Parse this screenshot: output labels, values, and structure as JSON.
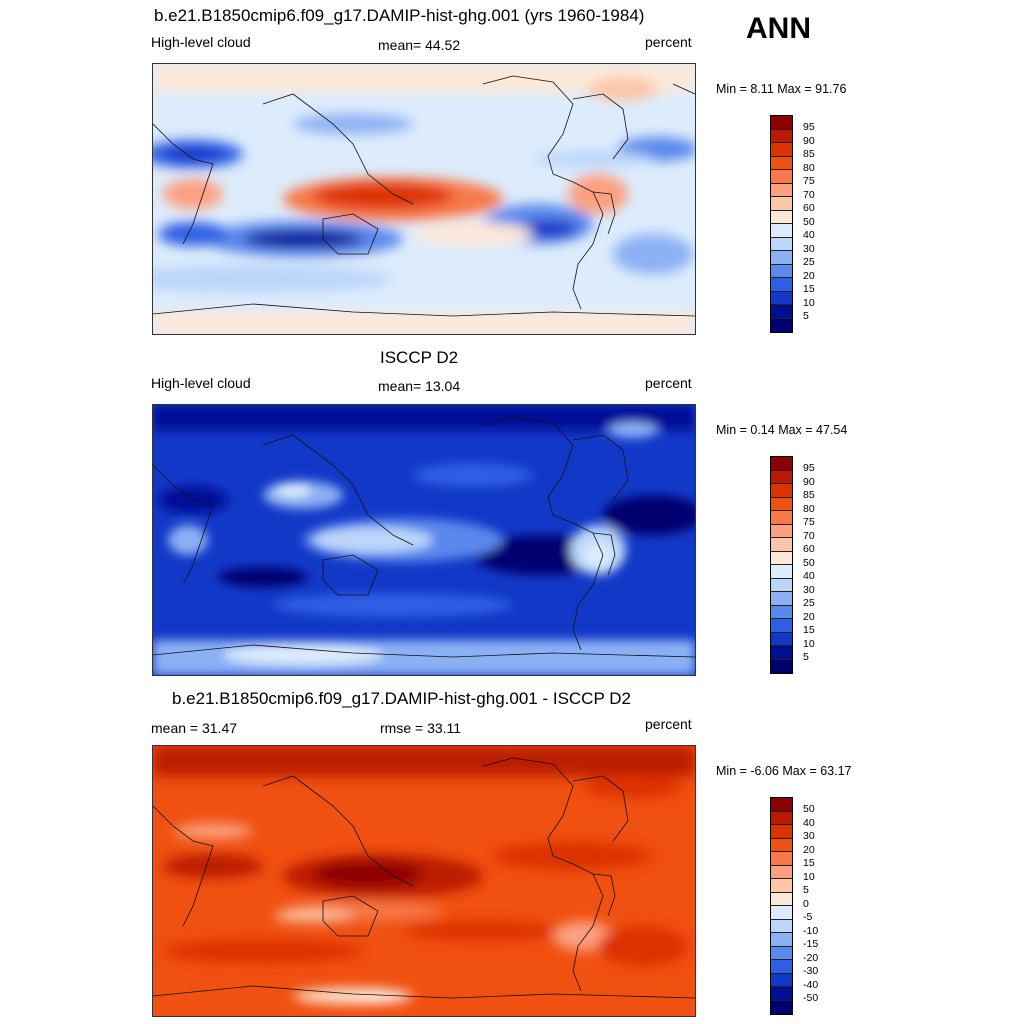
{
  "season": "ANN",
  "panels": [
    {
      "title": "b.e21.B1850cmip6.f09_g17.DAMIP-hist-ghg.001 (yrs 1960-1984)",
      "left_label": "High-level cloud",
      "center_label": "mean=  44.52",
      "right_label": "percent",
      "minmax": "Min =   8.11 Max =  91.76",
      "ticks": [
        "95",
        "90",
        "85",
        "80",
        "75",
        "70",
        "60",
        "50",
        "40",
        "30",
        "25",
        "20",
        "15",
        "10",
        "5"
      ],
      "colors": [
        "#8b0000",
        "#bb1a00",
        "#dd3300",
        "#f05010",
        "#f8784a",
        "#fca080",
        "#fdc6a8",
        "#fde8d8",
        "#dcecfc",
        "#bcd6fa",
        "#8cb0f4",
        "#5a88ec",
        "#2e5ee4",
        "#1238c8",
        "#000e96",
        "#000070"
      ]
    },
    {
      "title": "ISCCP D2",
      "left_label": "High-level cloud",
      "center_label": "mean=  13.04",
      "right_label": "percent",
      "minmax": "Min =   0.14 Max =  47.54",
      "ticks": [
        "95",
        "90",
        "85",
        "80",
        "75",
        "70",
        "60",
        "50",
        "40",
        "30",
        "25",
        "20",
        "15",
        "10",
        "5"
      ],
      "colors": [
        "#8b0000",
        "#bb1a00",
        "#dd3300",
        "#f05010",
        "#f8784a",
        "#fca080",
        "#fdc6a8",
        "#fde8d8",
        "#dcecfc",
        "#bcd6fa",
        "#8cb0f4",
        "#5a88ec",
        "#2e5ee4",
        "#1238c8",
        "#000e96",
        "#000070"
      ]
    },
    {
      "title": "b.e21.B1850cmip6.f09_g17.DAMIP-hist-ghg.001 - ISCCP D2",
      "left_label": "mean =  31.47",
      "center_label": "rmse =  33.11",
      "right_label": "percent",
      "minmax": "Min =  -6.06 Max =  63.17",
      "ticks": [
        "50",
        "40",
        "30",
        "20",
        "15",
        "10",
        "5",
        "0",
        "-5",
        "-10",
        "-15",
        "-20",
        "-30",
        "-40",
        "-50"
      ],
      "colors": [
        "#8b0000",
        "#bb1a00",
        "#dd3300",
        "#f05010",
        "#f8784a",
        "#fca080",
        "#fdc6a8",
        "#fde8d8",
        "#dcecfc",
        "#bcd6fa",
        "#8cb0f4",
        "#5a88ec",
        "#2e5ee4",
        "#1238c8",
        "#000e96",
        "#000070"
      ]
    }
  ]
}
